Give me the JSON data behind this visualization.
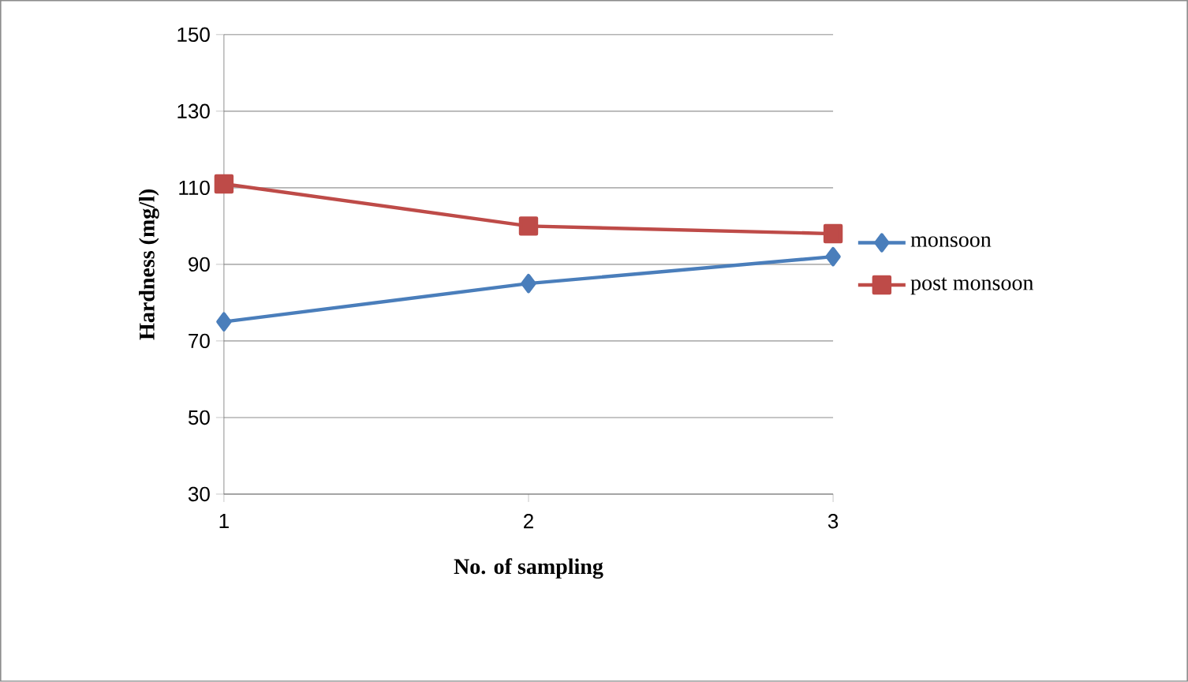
{
  "chart_data": {
    "type": "line",
    "xlabel": "No. of sampling",
    "ylabel": "Hardness (mg/l)",
    "categories": [
      "1",
      "2",
      "3"
    ],
    "series": [
      {
        "name": "monsoon",
        "color": "#4a7ebb",
        "marker": "diamond",
        "values": [
          75,
          85,
          92
        ]
      },
      {
        "name": "post monsoon",
        "color": "#be4b48",
        "marker": "square",
        "values": [
          111,
          100,
          98
        ]
      }
    ],
    "ylim": [
      30,
      150
    ],
    "yticks": [
      30,
      50,
      70,
      90,
      110,
      130,
      150
    ],
    "grid": "y",
    "legend": "right",
    "line_style": "solid"
  }
}
